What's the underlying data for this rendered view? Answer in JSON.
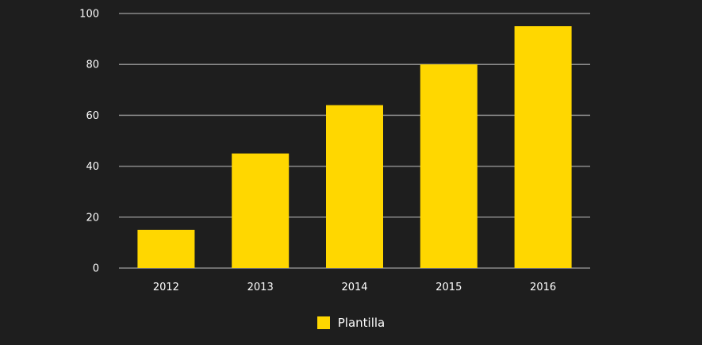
{
  "chart_data": {
    "type": "bar",
    "categories": [
      "2012",
      "2013",
      "2014",
      "2015",
      "2016"
    ],
    "series": [
      {
        "name": "Plantilla",
        "values": [
          15,
          45,
          64,
          80,
          95
        ]
      }
    ],
    "ylim": [
      0,
      100
    ],
    "yticks": [
      "0",
      "20",
      "40",
      "60",
      "80",
      "100"
    ],
    "grid": true,
    "legend_position": "bottom",
    "colors": {
      "background": "#1e1e1e",
      "bar": "#ffd700",
      "grid": "#8a8a8a",
      "text": "#ffffff"
    }
  },
  "legend": {
    "label": "Plantilla"
  }
}
